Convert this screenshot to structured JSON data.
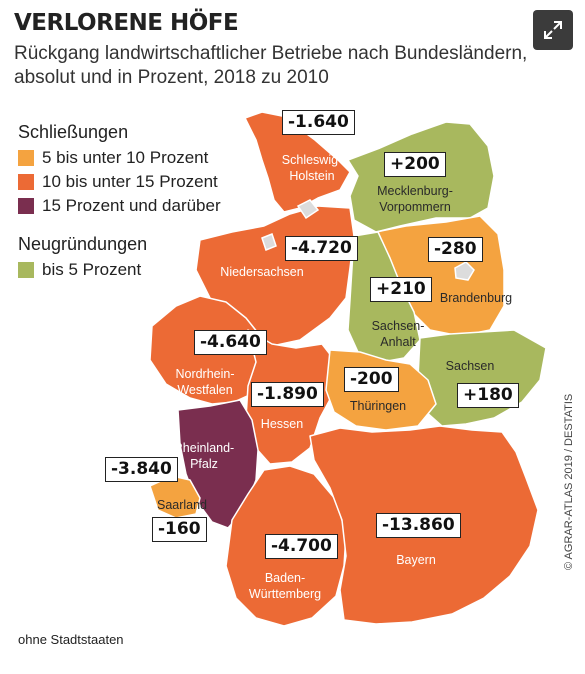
{
  "title": "VERLORENE HÖFE",
  "subtitle": "Rückgang landwirtschaftlicher Betriebe nach Bundesländern, absolut und in Prozent, 2018 zu 2010",
  "legend": {
    "closures_heading": "Schließungen",
    "closures": [
      {
        "label": "5 bis unter 10 Prozent",
        "color": "#f4a340"
      },
      {
        "label": "10 bis unter 15 Prozent",
        "color": "#ec6a35"
      },
      {
        "label": "15 Prozent und darüber",
        "color": "#7a2e4f"
      }
    ],
    "new_heading": "Neugründungen",
    "new": [
      {
        "label": "bis 5 Prozent",
        "color": "#a8b85e"
      }
    ]
  },
  "states": [
    {
      "key": "sh",
      "name": "Schleswig-\nHolstein",
      "value": "-1.640",
      "color": "#ec6a35"
    },
    {
      "key": "mv",
      "name": "Mecklenburg-\nVorpommern",
      "value": "+200",
      "color": "#a8b85e"
    },
    {
      "key": "ni",
      "name": "Niedersachsen",
      "value": "-4.720",
      "color": "#ec6a35"
    },
    {
      "key": "bb",
      "name": "Brandenburg",
      "value": "-280",
      "color": "#f4a340"
    },
    {
      "key": "st",
      "name": "Sachsen-\nAnhalt",
      "value": "+210",
      "color": "#a8b85e"
    },
    {
      "key": "nw",
      "name": "Nordrhein-\nWestfalen",
      "value": "-4.640",
      "color": "#ec6a35"
    },
    {
      "key": "sn",
      "name": "Sachsen",
      "value": "+180",
      "color": "#a8b85e"
    },
    {
      "key": "he",
      "name": "Hessen",
      "value": "-1.890",
      "color": "#ec6a35"
    },
    {
      "key": "th",
      "name": "Thüringen",
      "value": "-200",
      "color": "#f4a340"
    },
    {
      "key": "rp",
      "name": "Rheinland-\nPfalz",
      "value": "-3.840",
      "color": "#7a2e4f"
    },
    {
      "key": "sl",
      "name": "Saarland",
      "value": "-160",
      "color": "#f4a340"
    },
    {
      "key": "bw",
      "name": "Baden-\nWürttemberg",
      "value": "-4.700",
      "color": "#ec6a35"
    },
    {
      "key": "by",
      "name": "Bayern",
      "value": "-13.860",
      "color": "#ec6a35"
    }
  ],
  "footnote": "ohne Stadtstaaten",
  "credit": "© AGRAR-ATLAS 2019 / DESTATIS",
  "icons": {
    "expand": "expand-icon"
  }
}
